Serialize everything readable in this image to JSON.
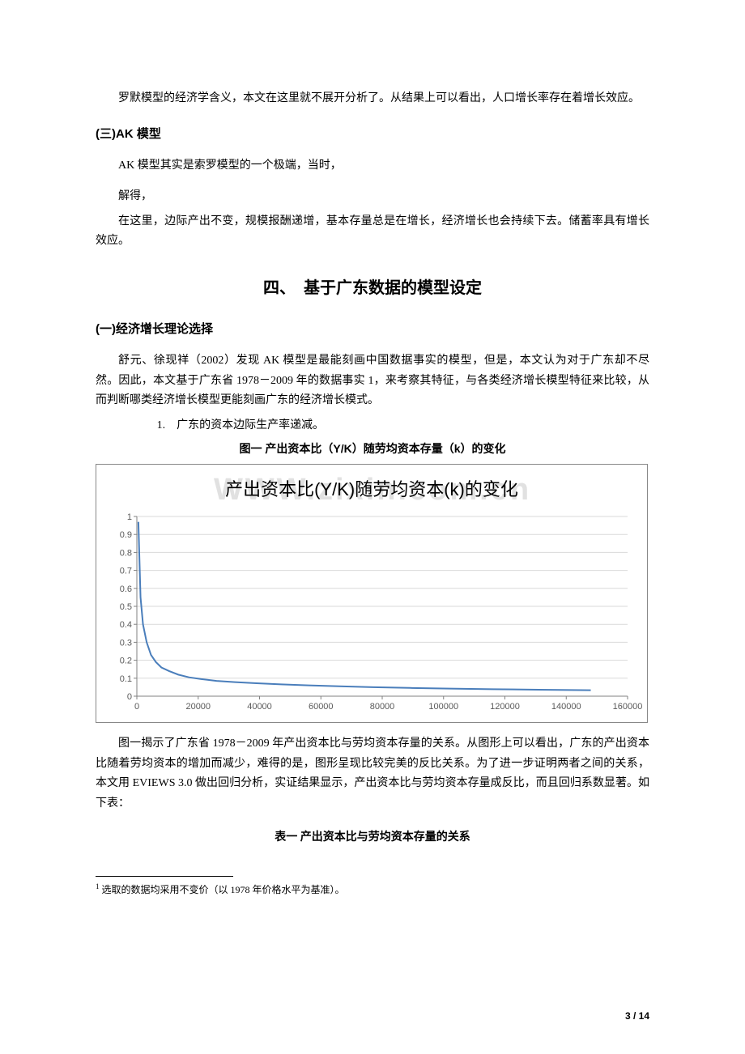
{
  "watermark": "WWW.zixin.com.cn",
  "para1": "罗默模型的经济学含义，本文在这里就不展开分析了。从结果上可以看出，人口增长率存在着增长效应。",
  "h3_1": "(三)AK 模型",
  "para2": "AK 模型其实是索罗模型的一个极端，当时，",
  "para3": "解得，",
  "para4": "在这里，边际产出不变，规模报酬递增，基本存量总是在增长，经济增长也会持续下去。储蓄率具有增长效应。",
  "h2_1": "四、　基于广东数据的模型设定",
  "h3_2": "(一)经济增长理论选择",
  "para5a": "舒元、徐现祥（2002）发现 AK 模型是最能刻画中国数据事实的模型，但是，本文认为对于广东却不尽然。因此，本文基于广东省 1978－2009 年的数据事实 1，来考察其特征，与各类经济增长模型特征来比较，从而判断哪类经济增长模型更能刻画广东的经济增长模式。",
  "list1": "1.　广东的资本边际生产率递减。",
  "fig1_caption": "图一  产出资本比（Y/K）随劳均资本存量（k）的变化",
  "chart": {
    "type": "line",
    "title": "产出资本比(Y/K)随劳均资本(k)的变化",
    "title_fontsize": 22,
    "background_color": "#ffffff",
    "border_color": "#888888",
    "grid_color": "#d9d9d9",
    "axis_color": "#808080",
    "line_color": "#4a7ebb",
    "line_width": 2,
    "xlim": [
      0,
      160000
    ],
    "xtick_step": 20000,
    "xtick_labels": [
      "0",
      "20000",
      "40000",
      "60000",
      "80000",
      "100000",
      "120000",
      "140000",
      "160000"
    ],
    "ylim": [
      0,
      1
    ],
    "ytick_step": 0.1,
    "ytick_labels": [
      "0",
      "0.1",
      "0.2",
      "0.3",
      "0.4",
      "0.5",
      "0.6",
      "0.7",
      "0.8",
      "0.9",
      "1"
    ],
    "tick_font_size": 11,
    "tick_font_color": "#595959",
    "series": [
      {
        "x": 500,
        "y": 0.97
      },
      {
        "x": 1200,
        "y": 0.55
      },
      {
        "x": 2000,
        "y": 0.4
      },
      {
        "x": 3200,
        "y": 0.3
      },
      {
        "x": 4600,
        "y": 0.23
      },
      {
        "x": 6200,
        "y": 0.19
      },
      {
        "x": 8000,
        "y": 0.16
      },
      {
        "x": 10500,
        "y": 0.14
      },
      {
        "x": 13500,
        "y": 0.12
      },
      {
        "x": 17000,
        "y": 0.105
      },
      {
        "x": 21000,
        "y": 0.095
      },
      {
        "x": 26000,
        "y": 0.085
      },
      {
        "x": 32000,
        "y": 0.078
      },
      {
        "x": 39000,
        "y": 0.072
      },
      {
        "x": 47000,
        "y": 0.066
      },
      {
        "x": 56000,
        "y": 0.06
      },
      {
        "x": 66000,
        "y": 0.055
      },
      {
        "x": 77000,
        "y": 0.05
      },
      {
        "x": 89000,
        "y": 0.046
      },
      {
        "x": 102000,
        "y": 0.042
      },
      {
        "x": 116000,
        "y": 0.039
      },
      {
        "x": 131000,
        "y": 0.036
      },
      {
        "x": 148000,
        "y": 0.033
      }
    ]
  },
  "para6": "图一揭示了广东省 1978－2009 年产出资本比与劳均资本存量的关系。从图形上可以看出，广东的产出资本比随着劳均资本的增加而减少，难得的是，图形呈现比较完美的反比关系。为了进一步证明两者之间的关系，本文用 EVIEWS 3.0 做出回归分析，实证结果显示，产出资本比与劳均资本存量成反比，而且回归系数显著。如下表：",
  "table1_caption": "表一  产出资本比与劳均资本存量的关系",
  "footnote1_num": "1",
  "footnote1": " 选取的数据均采用不变价（以 1978 年价格水平为基准）。",
  "page_current": "3",
  "page_sep": " / ",
  "page_total": "14"
}
